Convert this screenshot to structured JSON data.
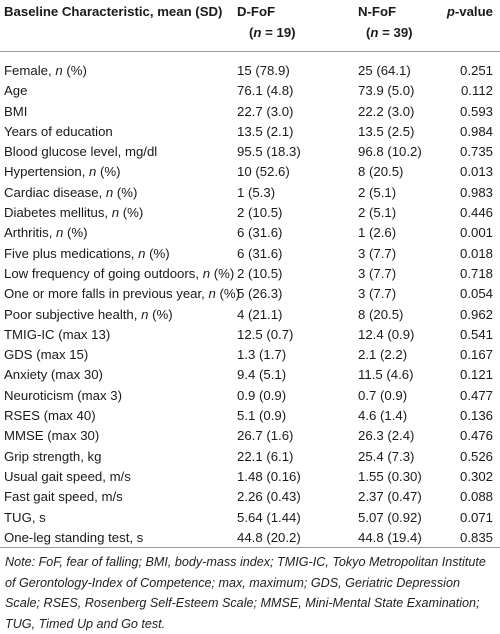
{
  "headers": {
    "characteristic": "Baseline Characteristic, mean (SD)",
    "dfof": "D-FoF",
    "dfof_n": "(n = 19)",
    "nfof": "N-FoF",
    "nfof_n": "(n = 39)",
    "pvalue": "p-value"
  },
  "rows": [
    {
      "label": "Female, n (%)",
      "dfof": "15 (78.9)",
      "nfof": "25 (64.1)",
      "p": "0.251"
    },
    {
      "label": "Age",
      "dfof": "76.1 (4.8)",
      "nfof": "73.9 (5.0)",
      "p": "0.112"
    },
    {
      "label": "BMI",
      "dfof": "22.7 (3.0)",
      "nfof": "22.2 (3.0)",
      "p": "0.593"
    },
    {
      "label": "Years of education",
      "dfof": "13.5 (2.1)",
      "nfof": "13.5 (2.5)",
      "p": "0.984"
    },
    {
      "label": "Blood glucose level, mg/dl",
      "dfof": "95.5 (18.3)",
      "nfof": "96.8 (10.2)",
      "p": "0.735"
    },
    {
      "label": "Hypertension, n (%)",
      "dfof": "10 (52.6)",
      "nfof": "8 (20.5)",
      "p": "0.013"
    },
    {
      "label": "Cardiac disease, n (%)",
      "dfof": "1 (5.3)",
      "nfof": "2 (5.1)",
      "p": "0.983"
    },
    {
      "label": "Diabetes mellitus, n (%)",
      "dfof": "2 (10.5)",
      "nfof": "2 (5.1)",
      "p": "0.446"
    },
    {
      "label": "Arthritis, n (%)",
      "dfof": "6 (31.6)",
      "nfof": "1 (2.6)",
      "p": "0.001"
    },
    {
      "label": "Five plus medications, n (%)",
      "dfof": "6 (31.6)",
      "nfof": "3 (7.7)",
      "p": "0.018"
    },
    {
      "label": "Low frequency of going outdoors, n (%)",
      "dfof": "2 (10.5)",
      "nfof": "3 (7.7)",
      "p": "0.718"
    },
    {
      "label": "One or more falls in previous year, n (%)",
      "dfof": "5 (26.3)",
      "nfof": "3 (7.7)",
      "p": "0.054"
    },
    {
      "label": "Poor subjective health, n (%)",
      "dfof": "4 (21.1)",
      "nfof": "8 (20.5)",
      "p": "0.962"
    },
    {
      "label": "TMIG-IC (max 13)",
      "dfof": "12.5 (0.7)",
      "nfof": "12.4 (0.9)",
      "p": "0.541"
    },
    {
      "label": "GDS (max 15)",
      "dfof": "1.3 (1.7)",
      "nfof": "2.1 (2.2)",
      "p": "0.167"
    },
    {
      "label": "Anxiety (max 30)",
      "dfof": "9.4 (5.1)",
      "nfof": "11.5 (4.6)",
      "p": "0.121"
    },
    {
      "label": "Neuroticism (max 3)",
      "dfof": "0.9 (0.9)",
      "nfof": "0.7 (0.9)",
      "p": "0.477"
    },
    {
      "label": "RSES (max 40)",
      "dfof": "5.1 (0.9)",
      "nfof": "4.6 (1.4)",
      "p": "0.136"
    },
    {
      "label": "MMSE (max 30)",
      "dfof": "26.7 (1.6)",
      "nfof": "26.3 (2.4)",
      "p": "0.476"
    },
    {
      "label": "Grip strength, kg",
      "dfof": "22.1 (6.1)",
      "nfof": "25.4 (7.3)",
      "p": "0.526"
    },
    {
      "label": "Usual gait speed, m/s",
      "dfof": "1.48 (0.16)",
      "nfof": "1.55 (0.30)",
      "p": "0.302"
    },
    {
      "label": "Fast gait speed, m/s",
      "dfof": "2.26 (0.43)",
      "nfof": "2.37 (0.47)",
      "p": "0.088"
    },
    {
      "label": "TUG, s",
      "dfof": "5.64 (1.44)",
      "nfof": "5.07 (0.92)",
      "p": "0.071"
    },
    {
      "label": "One-leg standing test, s",
      "dfof": "44.8 (20.2)",
      "nfof": "44.8 (19.4)",
      "p": "0.835"
    }
  ],
  "note": "Note: FoF, fear of falling; BMI, body-mass index; TMIG-IC, Tokyo Metropolitan Institute of Gerontology-Index of Competence; max, maximum; GDS, Geriatric Depression Scale; RSES, Rosenberg Self-Esteem Scale; MMSE, Mini-Mental State Examination; TUG, Timed Up and Go test."
}
